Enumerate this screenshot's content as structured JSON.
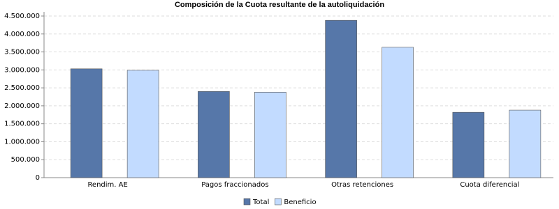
{
  "chart_data": {
    "type": "bar",
    "title": "Composición de la Cuota resultante de la autoliquidación",
    "categories": [
      "Rendim. AE",
      "Pagos fraccionados",
      "Otras retenciones",
      "Cuota diferencial"
    ],
    "series": [
      {
        "name": "Total",
        "color": "#5677a9",
        "values": [
          3030000,
          2400000,
          4380000,
          1820000
        ]
      },
      {
        "name": "Beneficio",
        "color": "#c2dbff",
        "values": [
          2990000,
          2380000,
          3630000,
          1880000
        ]
      }
    ],
    "ylim": [
      0,
      4500000
    ],
    "yticks": [
      0,
      {
        "value": 500000,
        "label": "500.000"
      },
      {
        "value": 1000000,
        "label": "1.000.000"
      },
      {
        "value": 1500000,
        "label": "1.500.000"
      },
      {
        "value": 2000000,
        "label": "2.000.000"
      },
      {
        "value": 2500000,
        "label": "2.500.000"
      },
      {
        "value": 3000000,
        "label": "3.000.000"
      },
      {
        "value": 3500000,
        "label": "3.500.000"
      },
      {
        "value": 4000000,
        "label": "4.000.000"
      },
      {
        "value": 4500000,
        "label": "4.500.000"
      }
    ],
    "grid": true,
    "legend": "bottom"
  }
}
